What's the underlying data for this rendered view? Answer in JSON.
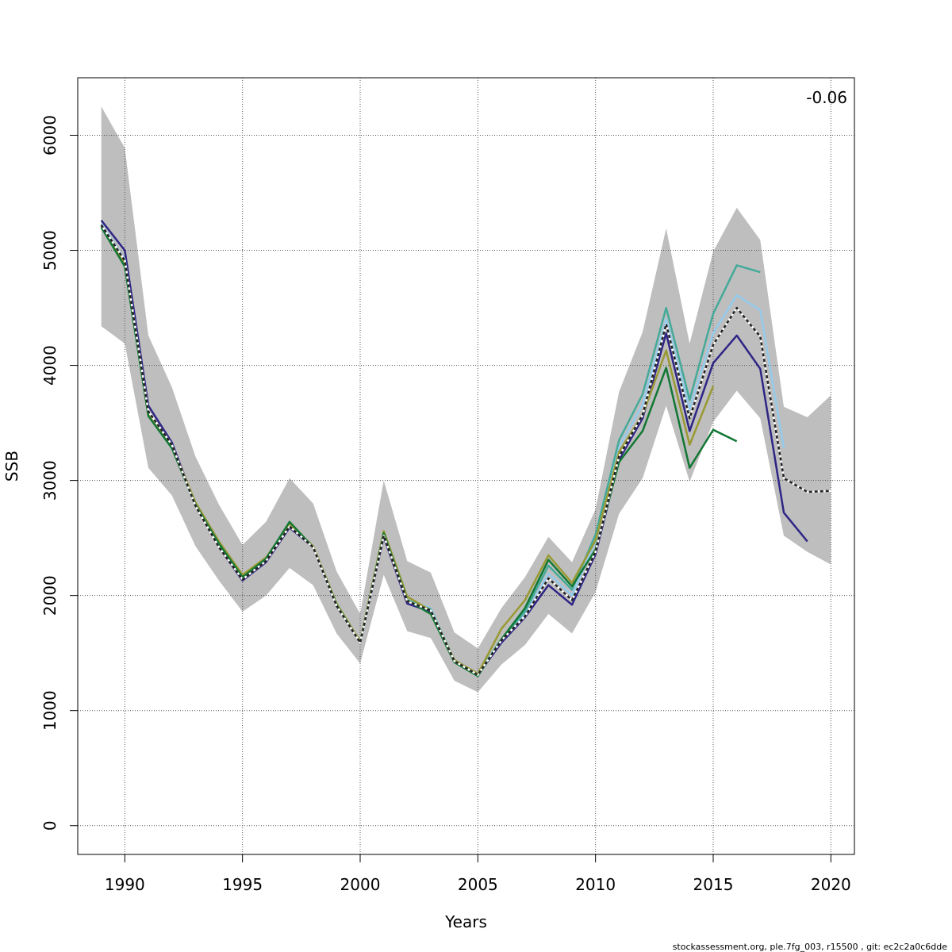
{
  "chart_data": {
    "type": "line",
    "title": "",
    "xlabel": "Years",
    "ylabel": "SSB",
    "xlim": [
      1988,
      2021
    ],
    "ylim": [
      -250,
      6500
    ],
    "grid": true,
    "xticks": [
      1990,
      1995,
      2000,
      2005,
      2010,
      2015,
      2020
    ],
    "yticks": [
      0,
      1000,
      2000,
      3000,
      4000,
      5000,
      6000
    ],
    "annotation": "-0.06",
    "colors": {
      "band": "#bebebe",
      "reference": "#222222"
    },
    "band": {
      "x": [
        1989,
        1990,
        1991,
        1992,
        1993,
        1994,
        1995,
        1996,
        1997,
        1998,
        1999,
        2000,
        2001,
        2002,
        2003,
        2004,
        2005,
        2006,
        2007,
        2008,
        2009,
        2010,
        2011,
        2012,
        2013,
        2014,
        2015,
        2016,
        2017,
        2018,
        2019,
        2020
      ],
      "lower": [
        4340,
        4190,
        3110,
        2870,
        2430,
        2130,
        1860,
        2000,
        2240,
        2090,
        1670,
        1410,
        2180,
        1690,
        1630,
        1260,
        1160,
        1400,
        1570,
        1840,
        1670,
        2030,
        2710,
        3020,
        3650,
        2990,
        3510,
        3780,
        3540,
        2520,
        2380,
        2270
      ],
      "upper": [
        6250,
        5890,
        4260,
        3810,
        3210,
        2790,
        2440,
        2640,
        3020,
        2800,
        2210,
        1840,
        3000,
        2300,
        2200,
        1680,
        1540,
        1890,
        2160,
        2510,
        2290,
        2750,
        3770,
        4290,
        5190,
        4190,
        4990,
        5370,
        5090,
        3640,
        3550,
        3740
      ]
    },
    "series": [
      {
        "color": "#222222",
        "dashed": true,
        "x": [
          1989,
          1990,
          1991,
          1992,
          1993,
          1994,
          1995,
          1996,
          1997,
          1998,
          1999,
          2000,
          2001,
          2002,
          2003,
          2004,
          2005,
          2006,
          2007,
          2008,
          2009,
          2010,
          2011,
          2012,
          2013,
          2014,
          2015,
          2016,
          2017,
          2018,
          2019,
          2020
        ],
        "y": [
          5220,
          4910,
          3600,
          3310,
          2780,
          2420,
          2140,
          2300,
          2600,
          2420,
          1910,
          1590,
          2520,
          1950,
          1870,
          1430,
          1310,
          1610,
          1820,
          2150,
          1960,
          2380,
          3210,
          3570,
          4360,
          3540,
          4180,
          4500,
          4250,
          3020,
          2900,
          2910
        ]
      },
      {
        "color": "#2e2585",
        "dashed": false,
        "x": [
          1989,
          1990,
          1991,
          1992,
          1993,
          1994,
          1995,
          1996,
          1997,
          1998,
          1999,
          2000,
          2001,
          2002,
          2003,
          2004,
          2005,
          2006,
          2007,
          2008,
          2009,
          2010,
          2011,
          2012,
          2013,
          2014,
          2015,
          2016,
          2017,
          2018,
          2019
        ],
        "y": [
          5260,
          5000,
          3650,
          3330,
          2790,
          2420,
          2130,
          2290,
          2590,
          2420,
          1910,
          1590,
          2510,
          1930,
          1860,
          1430,
          1310,
          1590,
          1810,
          2090,
          1920,
          2360,
          3180,
          3540,
          4280,
          3430,
          4020,
          4260,
          3970,
          2720,
          2470
        ]
      },
      {
        "color": "#94cbec",
        "dashed": false,
        "x": [
          1989,
          1990,
          1991,
          1992,
          1993,
          1994,
          1995,
          1996,
          1997,
          1998,
          1999,
          2000,
          2001,
          2002,
          2003,
          2004,
          2005,
          2006,
          2007,
          2008,
          2009,
          2010,
          2011,
          2012,
          2013,
          2014,
          2015,
          2016,
          2017,
          2018
        ],
        "y": [
          5230,
          4920,
          3600,
          3310,
          2780,
          2430,
          2150,
          2310,
          2600,
          2420,
          1920,
          1590,
          2530,
          1960,
          1890,
          1440,
          1320,
          1620,
          1830,
          2190,
          2000,
          2470,
          3290,
          3660,
          4400,
          3620,
          4280,
          4610,
          4480,
          3280
        ]
      },
      {
        "color": "#44aa99",
        "dashed": false,
        "x": [
          1989,
          1990,
          1991,
          1992,
          1993,
          1994,
          1995,
          1996,
          1997,
          1998,
          1999,
          2000,
          2001,
          2002,
          2003,
          2004,
          2005,
          2006,
          2007,
          2008,
          2009,
          2010,
          2011,
          2012,
          2013,
          2014,
          2015,
          2016,
          2017
        ],
        "y": [
          5220,
          4900,
          3590,
          3300,
          2780,
          2430,
          2150,
          2320,
          2620,
          2420,
          1920,
          1590,
          2530,
          1960,
          1880,
          1440,
          1320,
          1620,
          1860,
          2260,
          2050,
          2530,
          3350,
          3750,
          4500,
          3700,
          4450,
          4870,
          4810
        ]
      },
      {
        "color": "#999933",
        "dashed": false,
        "x": [
          1989,
          1990,
          1991,
          1992,
          1993,
          1994,
          1995,
          1996,
          1997,
          1998,
          1999,
          2000,
          2001,
          2002,
          2003,
          2004,
          2005,
          2006,
          2007,
          2008,
          2009,
          2010,
          2011,
          2012,
          2013,
          2014,
          2015
        ],
        "y": [
          5210,
          4880,
          3570,
          3300,
          2810,
          2470,
          2180,
          2330,
          2620,
          2430,
          1930,
          1600,
          2560,
          1990,
          1870,
          1440,
          1320,
          1710,
          1960,
          2350,
          2110,
          2480,
          3250,
          3570,
          4130,
          3310,
          3820
        ]
      },
      {
        "color": "#117733",
        "dashed": false,
        "x": [
          1989,
          1990,
          1991,
          1992,
          1993,
          1994,
          1995,
          1996,
          1997,
          1998,
          1999,
          2000,
          2001,
          2002,
          2003,
          2004,
          2005,
          2006,
          2007,
          2008,
          2009,
          2010,
          2011,
          2012,
          2013,
          2014,
          2015,
          2016
        ],
        "y": [
          5200,
          4860,
          3560,
          3280,
          2790,
          2450,
          2160,
          2320,
          2640,
          2420,
          1920,
          1590,
          2540,
          1960,
          1840,
          1420,
          1300,
          1620,
          1890,
          2310,
          2080,
          2400,
          3160,
          3430,
          3980,
          3110,
          3440,
          3340
        ]
      }
    ]
  },
  "footer": "stockassessment.org, ple.7fg_003, r15500 , git: ec2c2a0c6dde"
}
